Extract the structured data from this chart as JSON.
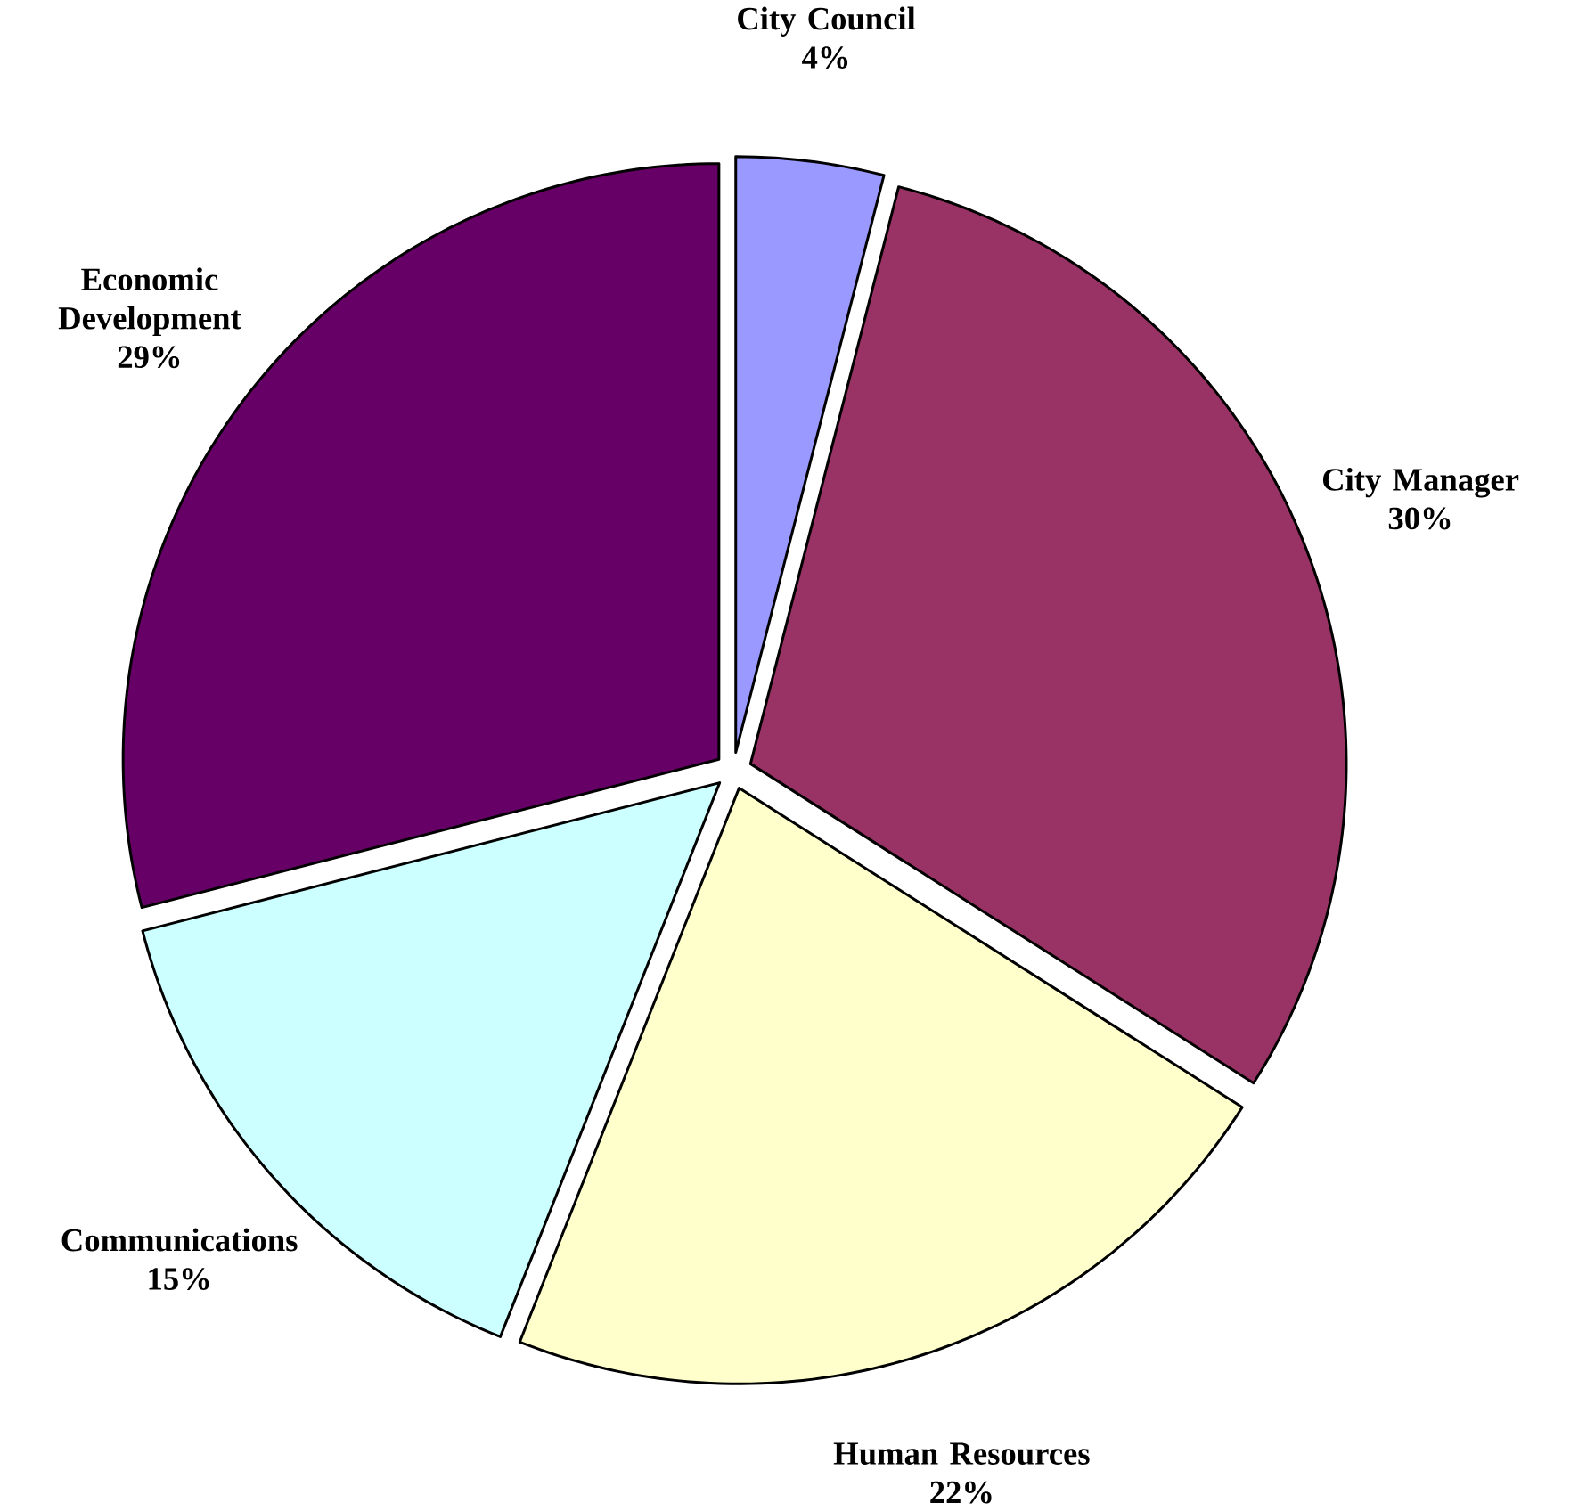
{
  "chart_data": {
    "type": "pie",
    "categories": [
      "City Council",
      "City Manager",
      "Human Resources",
      "Communications",
      "Economic Development"
    ],
    "values": [
      4,
      30,
      22,
      15,
      29
    ],
    "value_labels": [
      "4%",
      "30%",
      "22%",
      "15%",
      "29%"
    ],
    "colors": [
      "#9999ff",
      "#993366",
      "#ffffcc",
      "#ccffff",
      "#660066"
    ]
  }
}
